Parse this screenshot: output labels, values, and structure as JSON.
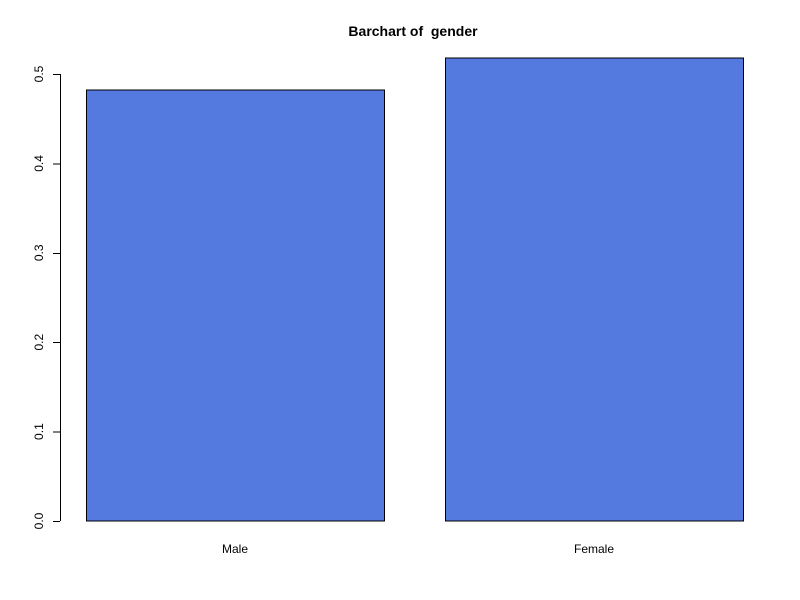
{
  "chart_data": {
    "type": "bar",
    "title": "Barchart of  gender",
    "xlabel": "",
    "ylabel": "",
    "categories": [
      "Male",
      "Female"
    ],
    "values": [
      0.482,
      0.518
    ],
    "ylim": [
      0,
      0.5
    ],
    "yticks": [
      0.0,
      0.1,
      0.2,
      0.3,
      0.4,
      0.5
    ],
    "ytick_labels": [
      "0.0",
      "0.1",
      "0.2",
      "0.3",
      "0.4",
      "0.5"
    ],
    "grid": false,
    "legend": "none",
    "bar_color": "#5479DF",
    "border_color": "#000000"
  }
}
